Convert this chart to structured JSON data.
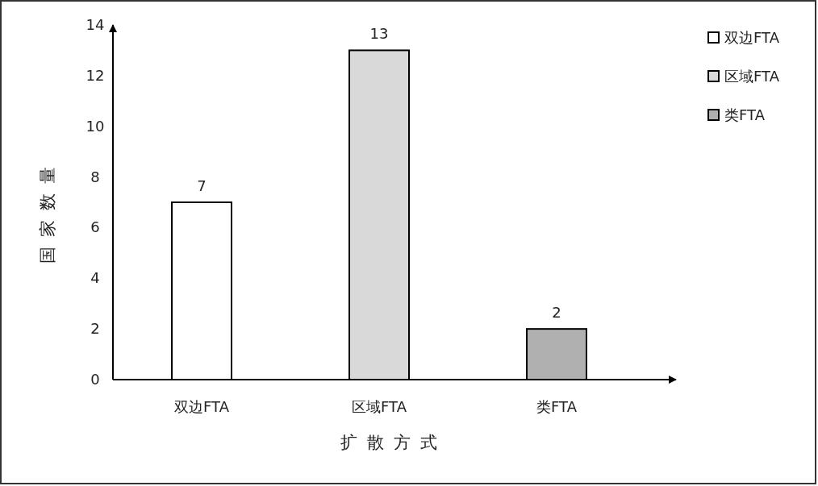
{
  "chart_data": {
    "type": "bar",
    "xlabel": "扩散方式",
    "ylabel": "国家数量",
    "categories": [
      "双边FTA",
      "区域FTA",
      "类FTA"
    ],
    "series": [
      {
        "name": "双边FTA",
        "color": "#ffffff",
        "values": [
          7,
          null,
          null
        ]
      },
      {
        "name": "区域FTA",
        "color": "#d9d9d9",
        "values": [
          null,
          13,
          null
        ]
      },
      {
        "name": "类FTA",
        "color": "#b0b0b0",
        "values": [
          null,
          null,
          2
        ]
      }
    ],
    "ylim": [
      0,
      14
    ],
    "yticks": [
      0,
      2,
      4,
      6,
      8,
      10,
      12,
      14
    ],
    "data_labels": true,
    "legend": "top right",
    "grid": false
  }
}
